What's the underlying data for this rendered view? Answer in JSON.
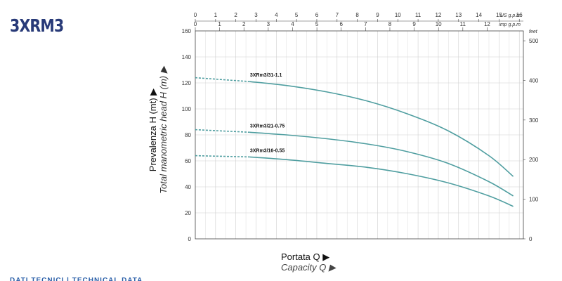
{
  "title": "3XRM3",
  "ylabel_main": "Prevalenza H (mt) ▶",
  "ylabel_sub": "Total manometric head H (m) ▶",
  "xlabel_main": "Portata Q ▶",
  "xlabel_sub": "Capacity Q ▶",
  "footer_text": "DATI TECNICI | TECHNICAL DATA",
  "colors": {
    "curve": "#4f9ea0",
    "grid": "#cfcfcf",
    "axis": "#444444",
    "title": "#283a78"
  },
  "chart_data": {
    "type": "line",
    "ylabel": "Prevalenza H (mt)",
    "ylim": [
      0,
      160
    ],
    "yticks": [
      0,
      20,
      40,
      60,
      80,
      100,
      120,
      140,
      160
    ],
    "feet_ticks": [
      0,
      100,
      200,
      300,
      400,
      500
    ],
    "feet_unit": "feet",
    "x_us_gpm_ticks": [
      0,
      1,
      2,
      3,
      4,
      5,
      6,
      7,
      8,
      9,
      10,
      11,
      12,
      13,
      14,
      15,
      16
    ],
    "x_us_unit": "US g.p.m",
    "x_imp_gpm_ticks": [
      0,
      1,
      2,
      3,
      4,
      5,
      6,
      7,
      8,
      9,
      10,
      11,
      12
    ],
    "x_imp_unit": "imp g.p.m",
    "xlim_us_gpm": [
      0,
      16.2
    ],
    "grid": true,
    "series": [
      {
        "name": "3XRm3/31-1.1",
        "x": [
          0,
          2.7,
          4.5,
          6.5,
          8.5,
          10.5,
          12.5,
          14.5,
          15.7
        ],
        "y": [
          124,
          121,
          118,
          113,
          106,
          96,
          83,
          64,
          48
        ],
        "dashed_until_x": 2.7
      },
      {
        "name": "3XRm3/21-0.75",
        "x": [
          0,
          2.7,
          4.5,
          6.5,
          8.5,
          10.5,
          12.5,
          14.5,
          15.7
        ],
        "y": [
          84,
          82,
          80,
          77,
          73,
          67,
          58,
          44,
          33
        ],
        "dashed_until_x": 2.7
      },
      {
        "name": "3XRm3/16-0.55",
        "x": [
          0,
          2.7,
          4.5,
          6.5,
          8.5,
          10.5,
          12.5,
          14.5,
          15.7
        ],
        "y": [
          64,
          63,
          61,
          58,
          55,
          50,
          43,
          33,
          25
        ],
        "dashed_until_x": 2.7
      }
    ]
  }
}
